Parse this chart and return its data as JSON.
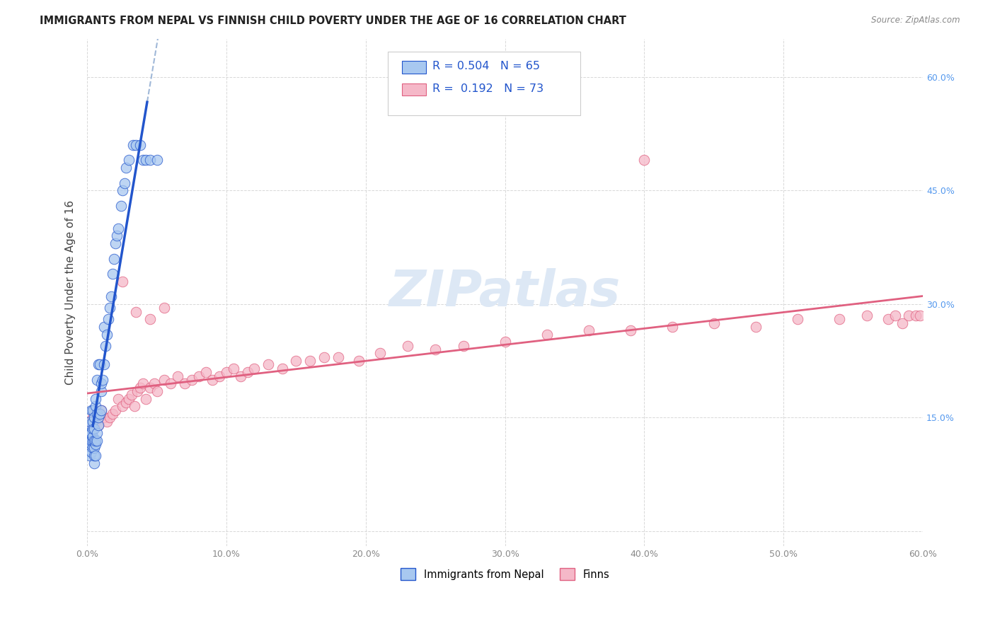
{
  "title": "IMMIGRANTS FROM NEPAL VS FINNISH CHILD POVERTY UNDER THE AGE OF 16 CORRELATION CHART",
  "source": "Source: ZipAtlas.com",
  "ylabel": "Child Poverty Under the Age of 16",
  "xlim": [
    0.0,
    0.6
  ],
  "ylim": [
    -0.02,
    0.65
  ],
  "legend_label1": "Immigrants from Nepal",
  "legend_label2": "Finns",
  "R1": "0.504",
  "N1": "65",
  "R2": "0.192",
  "N2": "73",
  "color_blue": "#a8c8f0",
  "color_pink": "#f5b8c8",
  "trendline_blue": "#2255cc",
  "trendline_pink": "#e06080",
  "dashed_color": "#a0b8d8",
  "watermark_color": "#dde8f5",
  "background_color": "#ffffff",
  "grid_color": "#d8d8d8",
  "blue_x": [
    0.001,
    0.001,
    0.002,
    0.002,
    0.002,
    0.002,
    0.003,
    0.003,
    0.003,
    0.003,
    0.003,
    0.004,
    0.004,
    0.004,
    0.004,
    0.004,
    0.004,
    0.005,
    0.005,
    0.005,
    0.005,
    0.005,
    0.005,
    0.006,
    0.006,
    0.006,
    0.006,
    0.006,
    0.007,
    0.007,
    0.007,
    0.007,
    0.008,
    0.008,
    0.008,
    0.009,
    0.009,
    0.01,
    0.01,
    0.01,
    0.011,
    0.012,
    0.012,
    0.013,
    0.014,
    0.015,
    0.016,
    0.017,
    0.018,
    0.019,
    0.02,
    0.021,
    0.022,
    0.024,
    0.025,
    0.027,
    0.028,
    0.03,
    0.033,
    0.035,
    0.038,
    0.04,
    0.042,
    0.045,
    0.05
  ],
  "blue_y": [
    0.13,
    0.14,
    0.1,
    0.12,
    0.13,
    0.145,
    0.105,
    0.115,
    0.12,
    0.13,
    0.16,
    0.11,
    0.12,
    0.125,
    0.135,
    0.145,
    0.16,
    0.09,
    0.1,
    0.11,
    0.12,
    0.135,
    0.15,
    0.1,
    0.115,
    0.12,
    0.165,
    0.175,
    0.12,
    0.13,
    0.155,
    0.2,
    0.14,
    0.15,
    0.22,
    0.155,
    0.22,
    0.16,
    0.185,
    0.195,
    0.2,
    0.22,
    0.27,
    0.245,
    0.26,
    0.28,
    0.295,
    0.31,
    0.34,
    0.36,
    0.38,
    0.39,
    0.4,
    0.43,
    0.45,
    0.46,
    0.48,
    0.49,
    0.51,
    0.51,
    0.51,
    0.49,
    0.49,
    0.49,
    0.49
  ],
  "pink_x": [
    0.002,
    0.003,
    0.004,
    0.005,
    0.006,
    0.007,
    0.008,
    0.009,
    0.01,
    0.012,
    0.014,
    0.016,
    0.018,
    0.02,
    0.022,
    0.025,
    0.028,
    0.03,
    0.032,
    0.034,
    0.036,
    0.038,
    0.04,
    0.042,
    0.045,
    0.048,
    0.05,
    0.055,
    0.06,
    0.065,
    0.07,
    0.075,
    0.08,
    0.085,
    0.09,
    0.095,
    0.1,
    0.105,
    0.11,
    0.115,
    0.12,
    0.13,
    0.14,
    0.15,
    0.16,
    0.17,
    0.18,
    0.195,
    0.21,
    0.23,
    0.25,
    0.27,
    0.3,
    0.33,
    0.36,
    0.39,
    0.42,
    0.45,
    0.48,
    0.51,
    0.54,
    0.56,
    0.575,
    0.58,
    0.585,
    0.59,
    0.595,
    0.598,
    0.025,
    0.035,
    0.045,
    0.055,
    0.4
  ],
  "pink_y": [
    0.145,
    0.135,
    0.15,
    0.16,
    0.145,
    0.155,
    0.14,
    0.155,
    0.16,
    0.15,
    0.145,
    0.15,
    0.155,
    0.16,
    0.175,
    0.165,
    0.17,
    0.175,
    0.18,
    0.165,
    0.185,
    0.19,
    0.195,
    0.175,
    0.19,
    0.195,
    0.185,
    0.2,
    0.195,
    0.205,
    0.195,
    0.2,
    0.205,
    0.21,
    0.2,
    0.205,
    0.21,
    0.215,
    0.205,
    0.21,
    0.215,
    0.22,
    0.215,
    0.225,
    0.225,
    0.23,
    0.23,
    0.225,
    0.235,
    0.245,
    0.24,
    0.245,
    0.25,
    0.26,
    0.265,
    0.265,
    0.27,
    0.275,
    0.27,
    0.28,
    0.28,
    0.285,
    0.28,
    0.285,
    0.275,
    0.285,
    0.285,
    0.285,
    0.33,
    0.29,
    0.28,
    0.295,
    0.49
  ]
}
